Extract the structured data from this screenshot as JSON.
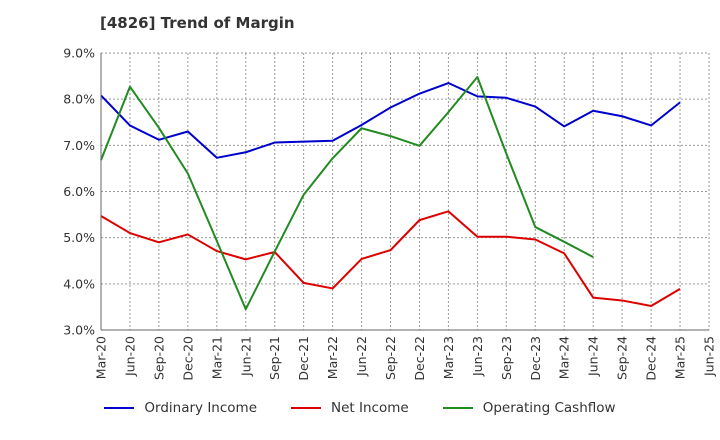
{
  "chart_data": {
    "type": "line",
    "title": "[4826]  Trend of Margin",
    "categories": [
      "Mar-20",
      "Jun-20",
      "Sep-20",
      "Dec-20",
      "Mar-21",
      "Jun-21",
      "Sep-21",
      "Dec-21",
      "Mar-22",
      "Jun-22",
      "Sep-22",
      "Dec-22",
      "Mar-23",
      "Jun-23",
      "Sep-23",
      "Dec-23",
      "Mar-24",
      "Jun-24",
      "Sep-24",
      "Dec-24",
      "Mar-25",
      "Jun-25"
    ],
    "y_ticks": [
      "3.0%",
      "4.0%",
      "5.0%",
      "6.0%",
      "7.0%",
      "8.0%",
      "9.0%"
    ],
    "ylim": [
      3.0,
      9.0
    ],
    "grid": true,
    "legend_position": "bottom",
    "series": [
      {
        "name": "Ordinary Income",
        "color": "#0000cc",
        "values": [
          8.08,
          7.43,
          7.12,
          7.3,
          6.73,
          6.85,
          7.06,
          7.08,
          7.1,
          7.44,
          7.82,
          8.12,
          8.35,
          8.06,
          8.03,
          7.84,
          7.41,
          7.75,
          7.63,
          7.43,
          7.93,
          null
        ]
      },
      {
        "name": "Net Income",
        "color": "#dd0000",
        "values": [
          5.47,
          5.1,
          4.9,
          5.07,
          4.71,
          4.53,
          4.69,
          4.02,
          3.9,
          4.54,
          4.73,
          5.38,
          5.57,
          5.02,
          5.02,
          4.96,
          4.66,
          3.7,
          3.64,
          3.52,
          3.89,
          null
        ]
      },
      {
        "name": "Operating Cashflow",
        "color": "#228b22",
        "values": [
          6.68,
          8.27,
          7.38,
          6.39,
          4.93,
          3.45,
          4.7,
          5.93,
          6.72,
          7.37,
          7.2,
          6.99,
          7.72,
          8.48,
          6.82,
          5.23,
          4.91,
          4.58,
          null,
          null,
          null,
          null
        ]
      }
    ]
  }
}
